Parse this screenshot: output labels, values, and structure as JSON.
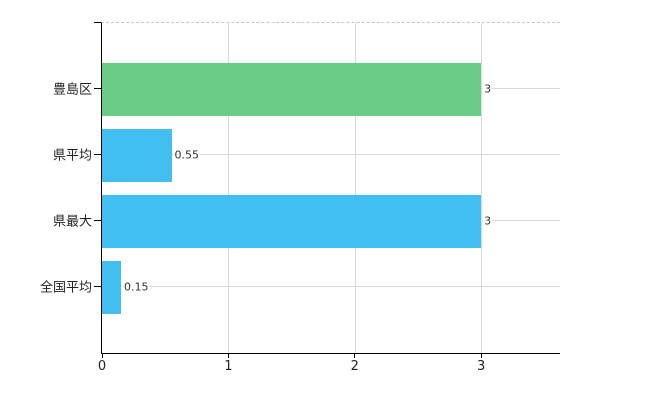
{
  "chart_data": {
    "type": "bar",
    "orientation": "horizontal",
    "title": "",
    "categories": [
      "豊島区",
      "県平均",
      "県最大",
      "全国平均"
    ],
    "values": [
      3,
      0.55,
      3,
      0.15
    ],
    "value_labels": [
      "3",
      "0.55",
      "3",
      "0.15"
    ],
    "bar_colors": [
      "#69cd87",
      "#41bff0",
      "#41bff0",
      "#41bff0"
    ],
    "x_ticks": [
      0,
      1,
      2,
      3
    ],
    "x_tick_labels": [
      "0",
      "1",
      "2",
      "3"
    ],
    "xlim": [
      0,
      3.624
    ],
    "grid": true,
    "legend": false,
    "colors": {
      "green_bar": "#69cd87",
      "blue_bar": "#41bff0",
      "axis": "#000000",
      "grid": "#d9d9d9",
      "top_border": "#ccc4c4",
      "label_text": "#222222",
      "value_text": "#333333",
      "background": "#ffffff"
    }
  }
}
